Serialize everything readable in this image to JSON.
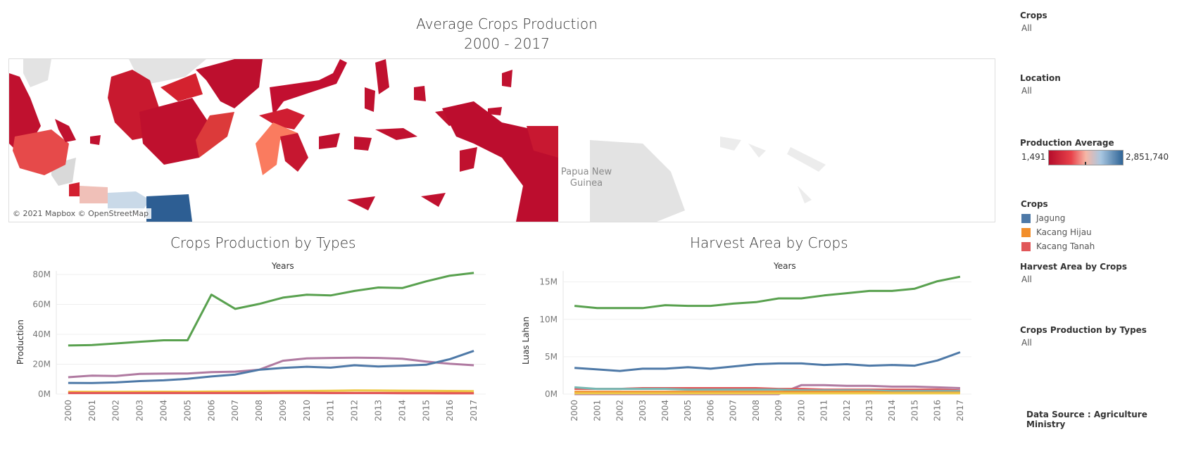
{
  "map": {
    "title_line1": "Average Crops Production",
    "title_line2": "2000 - 2017",
    "credit": "© 2021 Mapbox © OpenStreetMap",
    "place_label_line1": "Papua New",
    "place_label_line2": "Guinea"
  },
  "filters": {
    "crops_label": "Crops",
    "crops_value": "All",
    "location_label": "Location",
    "location_value": "All",
    "production_avg_label": "Production Average",
    "production_avg_min": "1,491",
    "production_avg_max": "2,851,740",
    "legend_title": "Crops",
    "legend_items": [
      {
        "label": "Jagung",
        "color": "#4e79a7"
      },
      {
        "label": "Kacang Hijau",
        "color": "#f28e2b"
      },
      {
        "label": "Kacang Tanah",
        "color": "#e15759"
      }
    ],
    "harvest_filter_label": "Harvest Area by Crops",
    "harvest_filter_value": "All",
    "production_filter_label": "Crops Production by Types",
    "production_filter_value": "All"
  },
  "footer": {
    "data_source": "Data Source : Agriculture Ministry"
  },
  "chart_data": [
    {
      "type": "line",
      "title": "Crops Production by Types",
      "xlabel": "Years",
      "ylabel": "Production",
      "x": [
        "2000",
        "2001",
        "2002",
        "2003",
        "2004",
        "2005",
        "2006",
        "2007",
        "2008",
        "2009",
        "2010",
        "2011",
        "2012",
        "2013",
        "2014",
        "2015",
        "2016",
        "2017"
      ],
      "ylim": [
        0,
        80000000
      ],
      "yticks": [
        {
          "value": 0,
          "label": "0M"
        },
        {
          "value": 20000000,
          "label": "20M"
        },
        {
          "value": 40000000,
          "label": "40M"
        },
        {
          "value": 60000000,
          "label": "60M"
        },
        {
          "value": 80000000,
          "label": "80M"
        }
      ],
      "grid": true,
      "series": [
        {
          "color": "#59a14f",
          "values": [
            32500000,
            32800000,
            33900000,
            35000000,
            36000000,
            36000000,
            66500000,
            57000000,
            60300000,
            64500000,
            66500000,
            66000000,
            69000000,
            71300000,
            70900000,
            75400000,
            79200000,
            81100000
          ]
        },
        {
          "color": "#b07aa1",
          "values": [
            11300000,
            12400000,
            12100000,
            13500000,
            13700000,
            13800000,
            14700000,
            15000000,
            16300000,
            22300000,
            23900000,
            24200000,
            24400000,
            24200000,
            23600000,
            21800000,
            20300000,
            19300000
          ]
        },
        {
          "color": "#4e79a7",
          "values": [
            7500000,
            7400000,
            7800000,
            8700000,
            9200000,
            10200000,
            11800000,
            13100000,
            16300000,
            17500000,
            18300000,
            17700000,
            19300000,
            18500000,
            19000000,
            19600000,
            23400000,
            28900000
          ]
        },
        {
          "color": "#edc948",
          "values": [
            1500000,
            1500000,
            1500000,
            1600000,
            1600000,
            1600000,
            1700000,
            1800000,
            1900000,
            2000000,
            2100000,
            2200000,
            2500000,
            2400000,
            2300000,
            2200000,
            2100000,
            2000000
          ]
        },
        {
          "color": "#f28e2b",
          "values": [
            1000000,
            900000,
            900000,
            900000,
            1000000,
            900000,
            900000,
            900000,
            800000,
            900000,
            900000,
            800000,
            800000,
            800000,
            800000,
            800000,
            800000,
            700000
          ]
        },
        {
          "color": "#e15759",
          "values": [
            700000,
            700000,
            700000,
            700000,
            700000,
            700000,
            700000,
            700000,
            700000,
            800000,
            800000,
            700000,
            700000,
            700000,
            600000,
            600000,
            500000,
            500000
          ]
        }
      ]
    },
    {
      "type": "line",
      "title": "Harvest Area by Crops",
      "xlabel": "Years",
      "ylabel": "Luas Lahan",
      "x": [
        "2000",
        "2001",
        "2002",
        "2003",
        "2004",
        "2005",
        "2006",
        "2007",
        "2008",
        "2009",
        "2010",
        "2011",
        "2012",
        "2013",
        "2014",
        "2015",
        "2016",
        "2017"
      ],
      "ylim": [
        0,
        16000000
      ],
      "yticks": [
        {
          "value": 0,
          "label": "0M"
        },
        {
          "value": 5000000,
          "label": "5M"
        },
        {
          "value": 10000000,
          "label": "10M"
        },
        {
          "value": 15000000,
          "label": "15M"
        }
      ],
      "grid": true,
      "series": [
        {
          "color": "#59a14f",
          "values": [
            11800000,
            11500000,
            11500000,
            11500000,
            11900000,
            11800000,
            11800000,
            12100000,
            12300000,
            12800000,
            12800000,
            13200000,
            13500000,
            13800000,
            13800000,
            14100000,
            15100000,
            15700000
          ]
        },
        {
          "color": "#4e79a7",
          "values": [
            3500000,
            3300000,
            3100000,
            3400000,
            3400000,
            3600000,
            3400000,
            3700000,
            4000000,
            4100000,
            4100000,
            3900000,
            4000000,
            3800000,
            3900000,
            3800000,
            4500000,
            5600000
          ]
        },
        {
          "color": "#b07aa1",
          "values": [
            0,
            0,
            0,
            0,
            0,
            0,
            0,
            0,
            0,
            0,
            1200000,
            1200000,
            1100000,
            1100000,
            1000000,
            1000000,
            900000,
            800000
          ]
        },
        {
          "color": "#e15759",
          "values": [
            700000,
            700000,
            700000,
            800000,
            800000,
            800000,
            800000,
            800000,
            800000,
            700000,
            700000,
            600000,
            600000,
            600000,
            600000,
            600000,
            600000,
            500000
          ]
        },
        {
          "color": "#76b7b2",
          "values": [
            900000,
            700000,
            700000,
            700000,
            700000,
            600000,
            600000,
            600000,
            600000,
            600000,
            500000,
            500000,
            500000,
            500000,
            400000,
            400000,
            400000,
            400000
          ]
        },
        {
          "color": "#f28e2b",
          "values": [
            300000,
            300000,
            300000,
            300000,
            300000,
            300000,
            300000,
            300000,
            300000,
            300000,
            300000,
            300000,
            300000,
            300000,
            200000,
            200000,
            200000,
            200000
          ]
        },
        {
          "color": "#edc948",
          "values": [
            100000,
            100000,
            100000,
            100000,
            100000,
            100000,
            100000,
            100000,
            100000,
            100000,
            100000,
            100000,
            100000,
            100000,
            100000,
            100000,
            100000,
            100000
          ]
        }
      ]
    }
  ]
}
